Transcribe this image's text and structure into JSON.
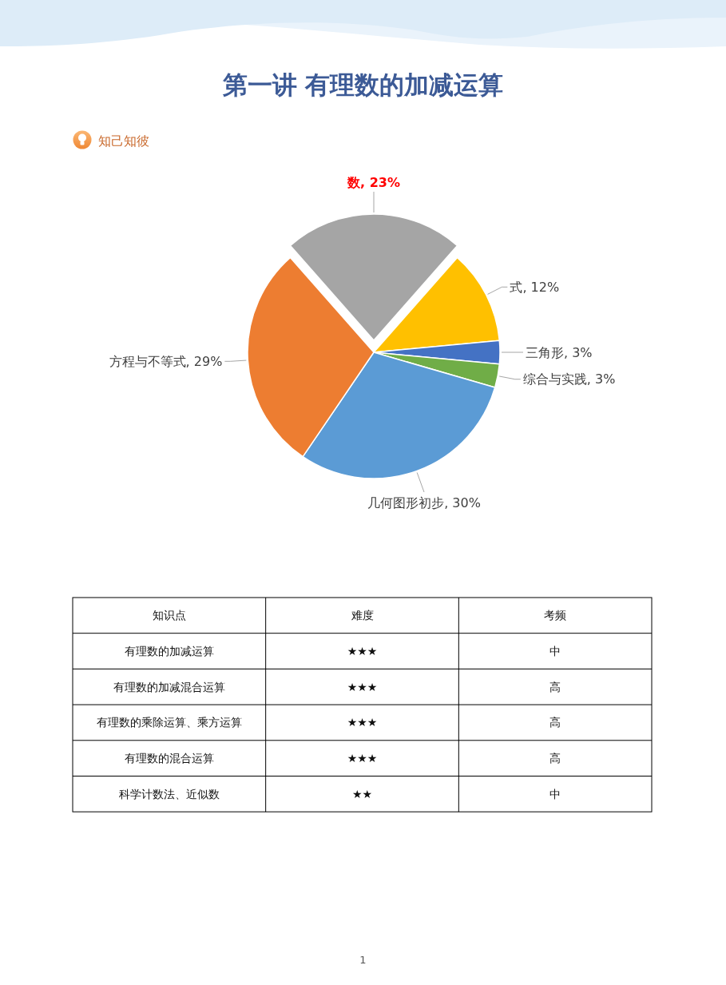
{
  "chart_data": [
    {
      "type": "pie",
      "title": "第一讲 有理数的加减运算",
      "subtitle": "知己知彼",
      "categories": [
        "数",
        "式",
        "三角形",
        "综合与实践",
        "几何图形初步",
        "方程与不等式"
      ],
      "values": [
        23,
        12,
        3,
        3,
        30,
        29
      ],
      "colors": [
        "#a5a5a5",
        "#ffc000",
        "#4472c4",
        "#70ad47",
        "#5b9bd5",
        "#ed7d31"
      ],
      "value_labels": [
        "23%",
        "12%",
        "3%",
        "3%",
        "30%",
        "29%"
      ]
    },
    {
      "type": "other",
      "categories": [
        "知识点",
        "难度",
        "考频"
      ],
      "cell_labels": [
        [
          "有理数的加减运算",
          "★★★",
          "中"
        ],
        [
          "有理数的加减混合运算",
          "★★★",
          "高"
        ],
        [
          "有理数的乘除运算、乘方运算",
          "★★★",
          "高"
        ],
        [
          "有理数的混合运算",
          "★★★",
          "高"
        ],
        [
          "科学计数法、近似数",
          "★★",
          "中"
        ]
      ],
      "annotations": [
        "1"
      ]
    }
  ]
}
